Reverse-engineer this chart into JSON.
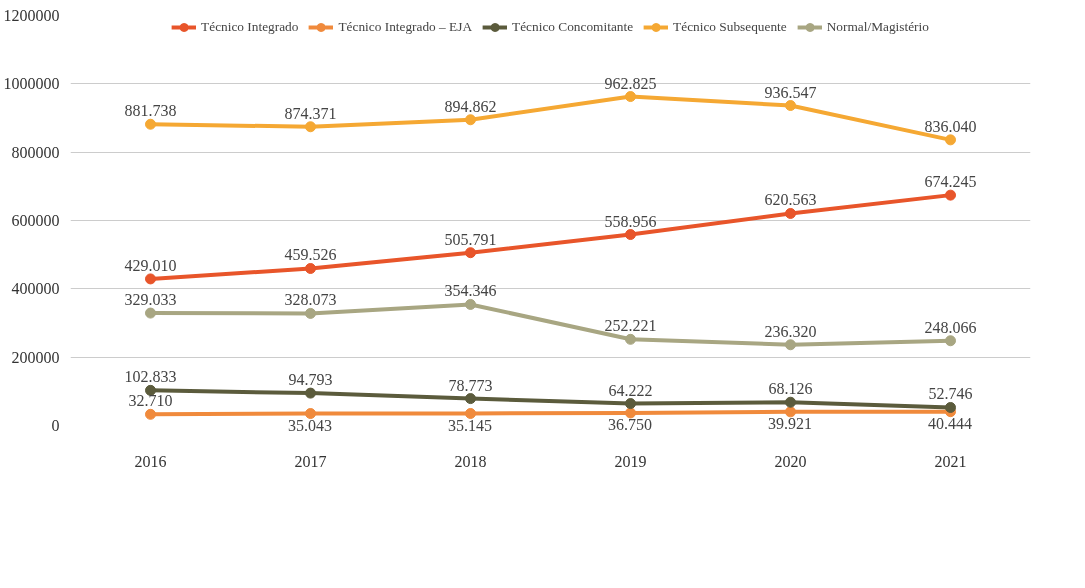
{
  "chart_data": {
    "type": "line",
    "categories": [
      "2016",
      "2017",
      "2018",
      "2019",
      "2020",
      "2021"
    ],
    "ylim": [
      0,
      1200000
    ],
    "yticks": [
      0,
      200000,
      400000,
      600000,
      800000,
      1000000,
      1200000
    ],
    "grid": "y",
    "legend": "top",
    "marker": "circle",
    "line_style": "solid",
    "series": [
      {
        "name": "Técnico Integrado",
        "color": "#e8552a",
        "values": [
          429010,
          459526,
          505791,
          558956,
          620563,
          674245
        ],
        "value_labels": [
          "429.010",
          "459.526",
          "505.791",
          "558.956",
          "620.563",
          "674.245"
        ]
      },
      {
        "name": "Técnico Integrado – EJA",
        "color": "#f08a3c",
        "values": [
          32710,
          35043,
          35145,
          36750,
          39921,
          40444
        ],
        "value_labels": [
          "32.710",
          "35.043",
          "35.145",
          "36.750",
          "39.921",
          "40.444"
        ]
      },
      {
        "name": "Técnico Concomitante",
        "color": "#5b5b3c",
        "values": [
          102833,
          94793,
          78773,
          64222,
          68126,
          52746
        ],
        "value_labels": [
          "102.833",
          "94.793",
          "78.773",
          "64.222",
          "68.126",
          "52.746"
        ]
      },
      {
        "name": "Técnico Subsequente",
        "color": "#f5a833",
        "values": [
          881738,
          874371,
          894862,
          962825,
          936547,
          836040
        ],
        "value_labels": [
          "881.738",
          "874.371",
          "894.862",
          "962.825",
          "936.547",
          "836.040"
        ]
      },
      {
        "name": "Normal/Magistério",
        "color": "#a8a682",
        "values": [
          329033,
          328073,
          354346,
          252221,
          236320,
          248066
        ],
        "value_labels": [
          "329.033",
          "328.073",
          "354.346",
          "252.221",
          "236.320",
          "248.066"
        ]
      }
    ]
  }
}
